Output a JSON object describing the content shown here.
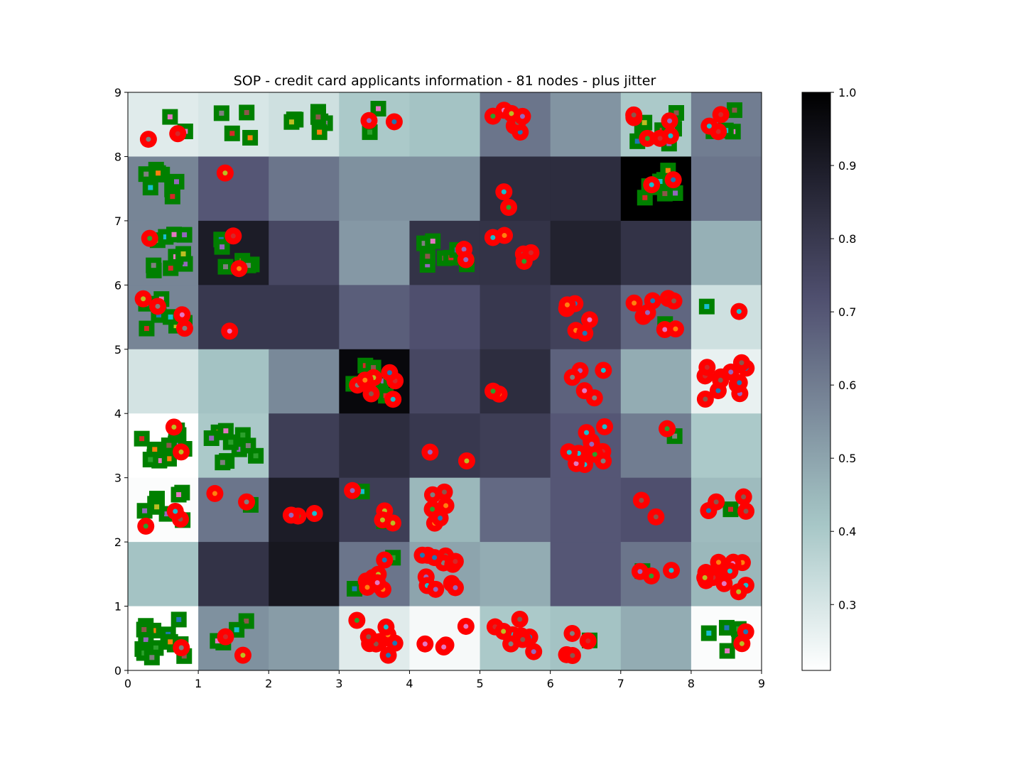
{
  "chart_data": {
    "type": "heatmap",
    "title": "SOP - credit card applicants information - 81 nodes - plus jitter",
    "xlim": [
      0,
      9
    ],
    "ylim": [
      0,
      9
    ],
    "xticks": [
      "0",
      "1",
      "2",
      "3",
      "4",
      "5",
      "6",
      "7",
      "8",
      "9"
    ],
    "yticks": [
      "0",
      "1",
      "2",
      "3",
      "4",
      "5",
      "6",
      "7",
      "8",
      "9"
    ],
    "grid": false,
    "colormap": "bone_r",
    "colorbar": {
      "range": [
        0.21,
        1.0
      ],
      "ticks": [
        "0.3",
        "0.4",
        "0.5",
        "0.6",
        "0.7",
        "0.8",
        "0.9",
        "1.0"
      ],
      "tick_values": [
        0.3,
        0.4,
        0.5,
        0.6,
        0.7,
        0.8,
        0.9,
        1.0
      ]
    },
    "cells": [
      [
        0.28,
        0.3,
        0.32,
        0.4,
        0.42,
        0.62,
        0.54,
        0.4,
        0.6
      ],
      [
        0.58,
        0.7,
        0.62,
        0.55,
        0.55,
        0.84,
        0.84,
        1.0,
        0.62
      ],
      [
        0.58,
        0.9,
        0.75,
        0.53,
        0.82,
        0.82,
        0.88,
        0.82,
        0.47
      ],
      [
        0.58,
        0.8,
        0.8,
        0.68,
        0.72,
        0.8,
        0.77,
        0.66,
        0.32
      ],
      [
        0.31,
        0.42,
        0.57,
        0.97,
        0.75,
        0.84,
        0.67,
        0.48,
        0.26
      ],
      [
        0.21,
        0.4,
        0.78,
        0.84,
        0.8,
        0.78,
        0.7,
        0.6,
        0.4
      ],
      [
        0.22,
        0.62,
        0.9,
        0.78,
        0.45,
        0.65,
        0.7,
        0.72,
        0.44
      ],
      [
        0.42,
        0.82,
        0.92,
        0.62,
        0.5,
        0.48,
        0.7,
        0.62,
        0.45
      ],
      [
        0.21,
        0.55,
        0.52,
        0.28,
        0.23,
        0.4,
        0.42,
        0.48,
        0.22
      ]
    ],
    "series": [
      {
        "marker": "square",
        "color": "#008000"
      },
      {
        "marker": "circle",
        "color": "#ff0000"
      }
    ],
    "jitter_center_colors": [
      "#1f77b4",
      "#ff7f0e",
      "#2ca02c",
      "#d62728",
      "#9467bd",
      "#8c564b",
      "#e377c2",
      "#7f7f7f",
      "#bcbd22",
      "#17becf"
    ],
    "node_counts": [
      [
        [
          2,
          2
        ],
        [
          4,
          0
        ],
        [
          8,
          0
        ],
        [
          2,
          2
        ],
        [
          0,
          0
        ],
        [
          0,
          7
        ],
        [
          0,
          0
        ],
        [
          9,
          6
        ],
        [
          4,
          3
        ]
      ],
      [
        [
          8,
          0
        ],
        [
          0,
          1
        ],
        [
          0,
          0
        ],
        [
          0,
          0
        ],
        [
          0,
          0
        ],
        [
          0,
          2
        ],
        [
          0,
          0
        ],
        [
          10,
          2
        ],
        [
          0,
          0
        ]
      ],
      [
        [
          10,
          1
        ],
        [
          6,
          2
        ],
        [
          0,
          0
        ],
        [
          0,
          0
        ],
        [
          8,
          2
        ],
        [
          0,
          5
        ],
        [
          0,
          0
        ],
        [
          0,
          0
        ],
        [
          0,
          0
        ]
      ],
      [
        [
          8,
          4
        ],
        [
          0,
          1
        ],
        [
          0,
          0
        ],
        [
          0,
          0
        ],
        [
          0,
          0
        ],
        [
          0,
          0
        ],
        [
          0,
          6
        ],
        [
          1,
          8
        ],
        [
          1,
          1
        ]
      ],
      [
        [
          0,
          0
        ],
        [
          0,
          0
        ],
        [
          0,
          0
        ],
        [
          6,
          8
        ],
        [
          0,
          0
        ],
        [
          0,
          2
        ],
        [
          0,
          5
        ],
        [
          0,
          0
        ],
        [
          0,
          12
        ]
      ],
      [
        [
          14,
          2
        ],
        [
          10,
          0
        ],
        [
          0,
          0
        ],
        [
          0,
          0
        ],
        [
          0,
          2
        ],
        [
          0,
          0
        ],
        [
          0,
          12
        ],
        [
          1,
          1
        ],
        [
          0,
          0
        ]
      ],
      [
        [
          8,
          3
        ],
        [
          1,
          2
        ],
        [
          0,
          3
        ],
        [
          2,
          4
        ],
        [
          0,
          6
        ],
        [
          0,
          0
        ],
        [
          0,
          0
        ],
        [
          0,
          2
        ],
        [
          1,
          4
        ]
      ],
      [
        [
          0,
          0
        ],
        [
          0,
          0
        ],
        [
          0,
          0
        ],
        [
          2,
          8
        ],
        [
          0,
          12
        ],
        [
          0,
          0
        ],
        [
          0,
          0
        ],
        [
          1,
          3
        ],
        [
          0,
          14
        ]
      ],
      [
        [
          14,
          1
        ],
        [
          4,
          2
        ],
        [
          0,
          0
        ],
        [
          0,
          9
        ],
        [
          0,
          4
        ],
        [
          0,
          9
        ],
        [
          1,
          4
        ],
        [
          0,
          0
        ],
        [
          5,
          2
        ]
      ]
    ]
  }
}
